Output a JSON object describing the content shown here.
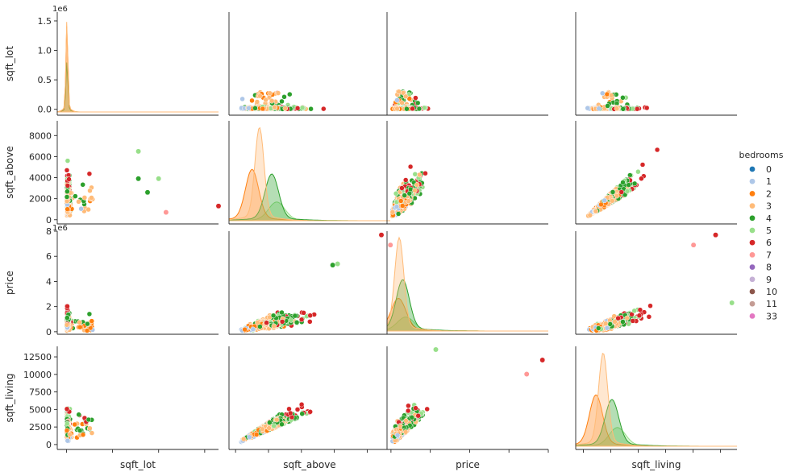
{
  "chart_data": {
    "type": "pairplot",
    "variables": [
      "sqft_lot",
      "sqft_above",
      "price",
      "sqft_living"
    ],
    "hue": "bedrooms",
    "legend": {
      "title": "bedrooms",
      "placement": "right",
      "entries": [
        {
          "label": "0",
          "color": "#1f77b4"
        },
        {
          "label": "1",
          "color": "#aec7e8"
        },
        {
          "label": "2",
          "color": "#ff7f0e"
        },
        {
          "label": "3",
          "color": "#ffbb78"
        },
        {
          "label": "4",
          "color": "#2ca02c"
        },
        {
          "label": "5",
          "color": "#98df8a"
        },
        {
          "label": "6",
          "color": "#d62728"
        },
        {
          "label": "7",
          "color": "#ff9896"
        },
        {
          "label": "8",
          "color": "#9467bd"
        },
        {
          "label": "9",
          "color": "#c5b0d5"
        },
        {
          "label": "10",
          "color": "#8c564b"
        },
        {
          "label": "11",
          "color": "#c49c94"
        },
        {
          "label": "33",
          "color": "#e377c2"
        }
      ]
    },
    "axes": {
      "sqft_lot": {
        "range": [
          -100000,
          1650000
        ],
        "ticks": [
          0.0,
          0.5,
          1.0,
          1.5
        ],
        "tick_scale": 1000000,
        "offset_label": "1e6"
      },
      "sqft_above": {
        "range": [
          -400,
          9400
        ],
        "ticks": [
          0,
          2000,
          4000,
          6000,
          8000
        ]
      },
      "price": {
        "range": [
          -200000,
          8000000
        ],
        "ticks": [
          0,
          2,
          4,
          6,
          8
        ],
        "tick_scale": 1000000,
        "offset_label": "1e6"
      },
      "sqft_living": {
        "range": [
          -700,
          14000
        ],
        "ticks": [
          0,
          2500,
          5000,
          7500,
          10000,
          12500
        ]
      }
    },
    "distributions": {
      "sqft_lot": {
        "peaks": [
          {
            "hue": "3",
            "height": 1.0
          },
          {
            "hue": "2",
            "height": 0.95
          },
          {
            "hue": "4",
            "height": 0.55
          }
        ]
      },
      "sqft_above": {
        "peaks": [
          {
            "hue": "3",
            "center": 1450,
            "height": 1.0
          },
          {
            "hue": "4",
            "center": 2200,
            "height": 0.5
          },
          {
            "hue": "2",
            "center": 1000,
            "height": 0.55
          },
          {
            "hue": "5",
            "center": 2500,
            "height": 0.2
          }
        ]
      },
      "price": {
        "peaks": [
          {
            "hue": "3",
            "center": 420000,
            "height": 1.0
          },
          {
            "hue": "4",
            "center": 600000,
            "height": 0.55
          },
          {
            "hue": "2",
            "center": 380000,
            "height": 0.35
          },
          {
            "hue": "5",
            "center": 750000,
            "height": 0.15
          }
        ]
      },
      "sqft_living": {
        "peaks": [
          {
            "hue": "3",
            "center": 1800,
            "height": 1.0
          },
          {
            "hue": "4",
            "center": 2600,
            "height": 0.5
          },
          {
            "hue": "2",
            "center": 1150,
            "height": 0.55
          },
          {
            "hue": "5",
            "center": 3100,
            "height": 0.2
          }
        ]
      }
    },
    "notable_points": [
      {
        "x": "sqft_lot",
        "y": "sqft_above",
        "points": [
          [
            1650000,
            1300
          ],
          [
            1080000,
            700
          ],
          [
            1000000,
            3900
          ],
          [
            880000,
            2600
          ],
          [
            780000,
            6500
          ],
          [
            780000,
            3900
          ]
        ]
      },
      {
        "x": "sqft_above",
        "y": "price",
        "points": [
          [
            8860,
            7700000
          ],
          [
            9410,
            6900000
          ],
          [
            6200,
            5400000
          ],
          [
            5900,
            5300000
          ]
        ]
      },
      {
        "x": "sqft_living",
        "y": "price",
        "points": [
          [
            12050,
            7700000
          ],
          [
            10040,
            6900000
          ],
          [
            13540,
            2300000
          ]
        ]
      },
      {
        "x": "price",
        "y": "sqft_living",
        "points": [
          [
            7700000,
            12050
          ],
          [
            6900000,
            10040
          ],
          [
            2280000,
            13540
          ]
        ]
      }
    ]
  }
}
